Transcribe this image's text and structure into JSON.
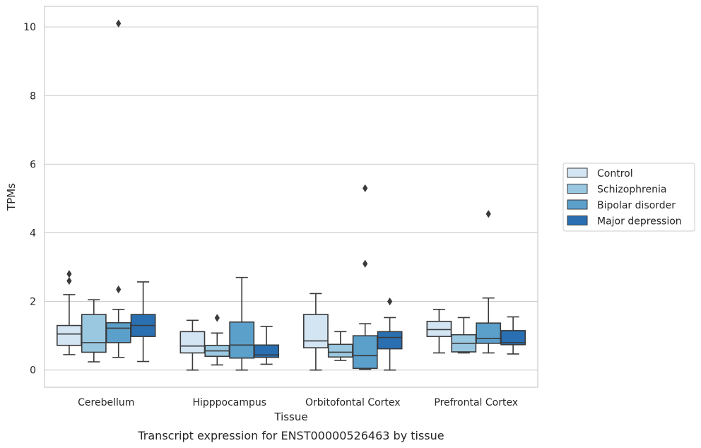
{
  "chart_data": {
    "type": "boxplot",
    "caption": "Transcript expression for ENST00000526463 by tissue",
    "xlabel": "Tissue",
    "ylabel": "TPMs",
    "ylim": [
      -0.5,
      10.6
    ],
    "yticks": [
      0,
      2,
      4,
      6,
      8,
      10
    ],
    "grid": true,
    "legend_position": "right",
    "categories": [
      "Cerebellum",
      "Hipppocampus",
      "Orbitofontal Cortex",
      "Prefrontal Cortex"
    ],
    "series": [
      {
        "name": "Control",
        "color": "#d3e4f3",
        "boxes": [
          {
            "whislo": 0.45,
            "q1": 0.72,
            "med": 1.05,
            "q3": 1.3,
            "whishi": 2.2,
            "fliers": [
              2.6,
              2.8
            ]
          },
          {
            "whislo": 0.0,
            "q1": 0.5,
            "med": 0.7,
            "q3": 1.12,
            "whishi": 1.45,
            "fliers": []
          },
          {
            "whislo": 0.0,
            "q1": 0.65,
            "med": 0.85,
            "q3": 1.62,
            "whishi": 2.23,
            "fliers": []
          },
          {
            "whislo": 0.5,
            "q1": 0.98,
            "med": 1.18,
            "q3": 1.42,
            "whishi": 1.77,
            "fliers": []
          }
        ]
      },
      {
        "name": "Schizophrenia",
        "color": "#9ac8e0",
        "boxes": [
          {
            "whislo": 0.24,
            "q1": 0.52,
            "med": 0.8,
            "q3": 1.62,
            "whishi": 2.05,
            "fliers": []
          },
          {
            "whislo": 0.15,
            "q1": 0.4,
            "med": 0.56,
            "q3": 0.72,
            "whishi": 1.08,
            "fliers": [
              1.52
            ]
          },
          {
            "whislo": 0.28,
            "q1": 0.38,
            "med": 0.52,
            "q3": 0.75,
            "whishi": 1.12,
            "fliers": []
          },
          {
            "whislo": 0.5,
            "q1": 0.53,
            "med": 0.78,
            "q3": 1.03,
            "whishi": 1.53,
            "fliers": []
          }
        ]
      },
      {
        "name": "Bipolar disorder",
        "color": "#5b9fcb",
        "boxes": [
          {
            "whislo": 0.37,
            "q1": 0.8,
            "med": 1.22,
            "q3": 1.38,
            "whishi": 1.77,
            "fliers": [
              2.35,
              10.1
            ]
          },
          {
            "whislo": 0.0,
            "q1": 0.35,
            "med": 0.73,
            "q3": 1.4,
            "whishi": 2.7,
            "fliers": []
          },
          {
            "whislo": 0.02,
            "q1": 0.05,
            "med": 0.42,
            "q3": 1.0,
            "whishi": 1.35,
            "fliers": [
              3.1,
              5.3
            ]
          },
          {
            "whislo": 0.5,
            "q1": 0.78,
            "med": 0.92,
            "q3": 1.37,
            "whishi": 2.1,
            "fliers": [
              4.55
            ]
          }
        ]
      },
      {
        "name": "Major depression",
        "color": "#2a6fb1",
        "boxes": [
          {
            "whislo": 0.25,
            "q1": 0.98,
            "med": 1.3,
            "q3": 1.62,
            "whishi": 2.57,
            "fliers": []
          },
          {
            "whislo": 0.17,
            "q1": 0.37,
            "med": 0.44,
            "q3": 0.73,
            "whishi": 1.27,
            "fliers": []
          },
          {
            "whislo": 0.0,
            "q1": 0.62,
            "med": 0.95,
            "q3": 1.12,
            "whishi": 1.53,
            "fliers": [
              2.0
            ]
          },
          {
            "whislo": 0.47,
            "q1": 0.74,
            "med": 0.8,
            "q3": 1.15,
            "whishi": 1.55,
            "fliers": []
          }
        ]
      }
    ]
  }
}
